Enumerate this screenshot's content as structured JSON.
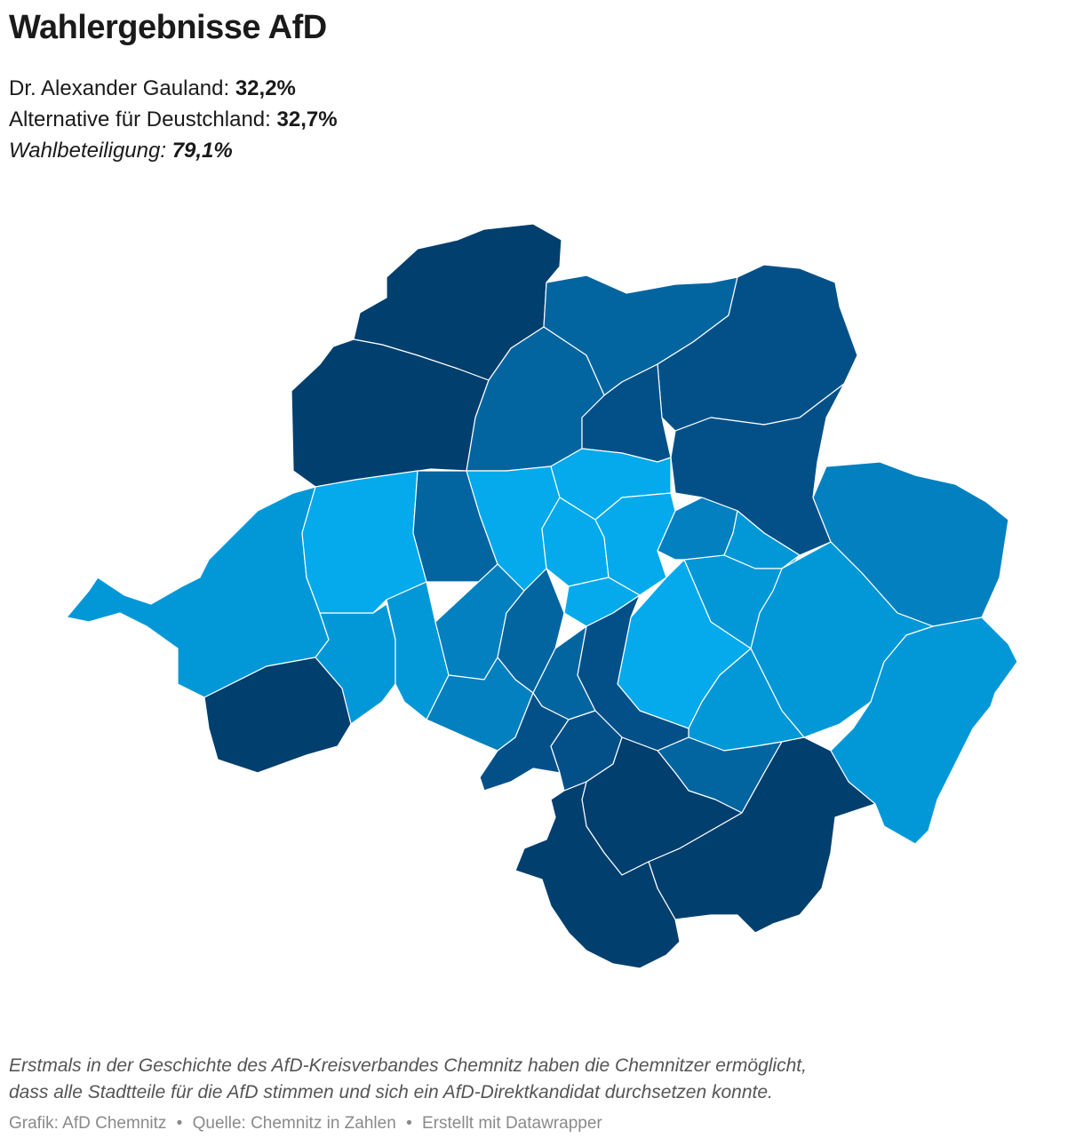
{
  "header": {
    "title": "Wahlergebnisse AfD"
  },
  "stats": [
    {
      "label": "Dr. Alexander Gauland: ",
      "value": "32,2%",
      "italic": false
    },
    {
      "label": "Alternative für Deustchland: ",
      "value": "32,7%",
      "italic": false
    },
    {
      "label": "Wahlbeteiligung: ",
      "value": "79,1%",
      "italic": true
    }
  ],
  "map": {
    "colors": {
      "darkest": "#003f6e",
      "dark": "#035089",
      "medium_dark": "#0265a0",
      "medium": "#0380bf",
      "medium_light": "#0298d8",
      "light": "#04aaeb"
    }
  },
  "note": {
    "line1": "Erstmals in der Geschichte des AfD-Kreisverbandes Chemnitz haben die Chemnitzer ermöglicht,",
    "line2": "dass alle Stadtteile für die AfD stimmen und sich ein AfD-Direktkandidat durchsetzen konnte."
  },
  "footer": {
    "grafik": "Grafik: AfD Chemnitz",
    "quelle": "Quelle: Chemnitz in Zahlen",
    "erstellt": "Erstellt mit Datawrapper",
    "separator": "•"
  }
}
